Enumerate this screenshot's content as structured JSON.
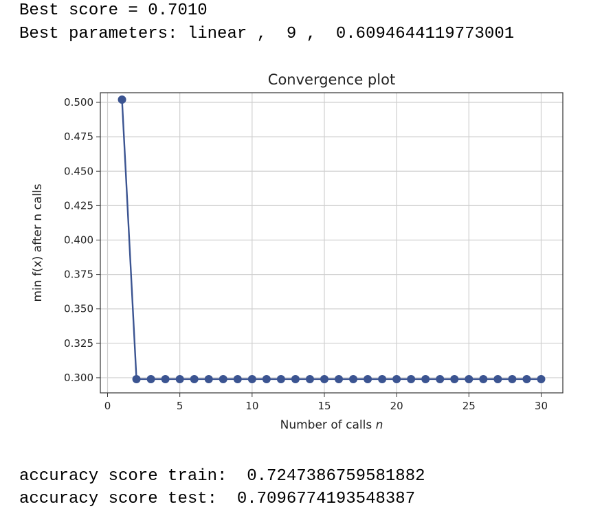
{
  "output": {
    "best_score_line": "Best score = 0.7010",
    "best_params_line": "Best parameters: linear ,  9 ,  0.6094644119773001",
    "acc_train_line": "accuracy score train:  0.7247386759581882",
    "acc_test_line": "accuracy score test:  0.7096774193548387"
  },
  "chart_data": {
    "type": "line",
    "title": "Convergence plot",
    "xlabel_prefix": "Number of calls ",
    "xlabel_var": "n",
    "ylabel": "min f(x) after n calls",
    "xlim": [
      -0.5,
      31.5
    ],
    "ylim": [
      0.289,
      0.507
    ],
    "xticks": [
      0,
      5,
      10,
      15,
      20,
      25,
      30
    ],
    "yticks": [
      0.3,
      0.325,
      0.35,
      0.375,
      0.4,
      0.425,
      0.45,
      0.475,
      0.5
    ],
    "ytick_labels": [
      "0.300",
      "0.325",
      "0.350",
      "0.375",
      "0.400",
      "0.425",
      "0.450",
      "0.475",
      "0.500"
    ],
    "grid": true,
    "series_color": "#3b5491",
    "series": [
      {
        "x": [
          1,
          2,
          3,
          4,
          5,
          6,
          7,
          8,
          9,
          10,
          11,
          12,
          13,
          14,
          15,
          16,
          17,
          18,
          19,
          20,
          21,
          22,
          23,
          24,
          25,
          26,
          27,
          28,
          29,
          30
        ],
        "values": [
          0.502,
          0.299,
          0.299,
          0.299,
          0.299,
          0.299,
          0.299,
          0.299,
          0.299,
          0.299,
          0.299,
          0.299,
          0.299,
          0.299,
          0.299,
          0.299,
          0.299,
          0.299,
          0.299,
          0.299,
          0.299,
          0.299,
          0.299,
          0.299,
          0.299,
          0.299,
          0.299,
          0.299,
          0.299,
          0.299
        ]
      }
    ]
  }
}
